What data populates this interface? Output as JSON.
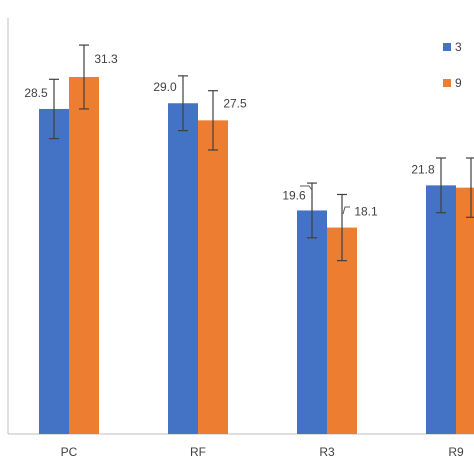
{
  "chart_data": {
    "type": "bar",
    "categories": [
      "PC",
      "RF",
      "R3",
      "R9"
    ],
    "series": [
      {
        "name": "3",
        "color": "#4472C4",
        "values": [
          28.5,
          29.0,
          19.6,
          21.8
        ],
        "errors": [
          2.6,
          2.4,
          2.4,
          2.4
        ]
      },
      {
        "name": "9",
        "color": "#ED7D31",
        "values": [
          31.3,
          27.5,
          18.1,
          21.6
        ],
        "errors": [
          2.8,
          2.6,
          2.9,
          2.6
        ]
      }
    ],
    "data_labels": [
      [
        "28.5",
        "29.0",
        "19.6",
        "21.8"
      ],
      [
        "31.3",
        "27.5",
        "18.1",
        ""
      ]
    ],
    "ylim": [
      0,
      37
    ],
    "xlabel": "",
    "ylabel": "",
    "title": "",
    "grid": false,
    "legend": "top-right",
    "legend_entries": [
      "3",
      "9"
    ],
    "error_bar_color": "#404040",
    "axis_color": "#bfbfbf"
  }
}
